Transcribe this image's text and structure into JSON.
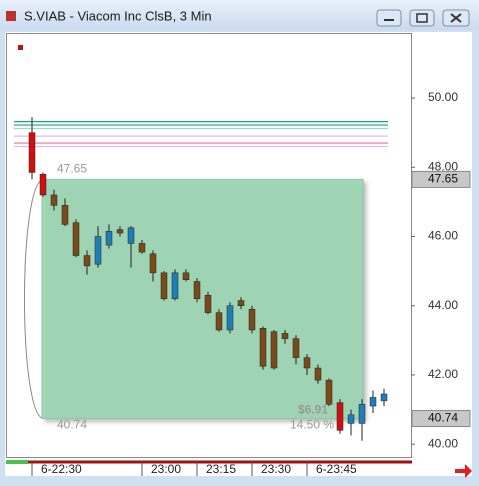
{
  "chart_data": {
    "type": "candlestick",
    "title": "S.VIAB - Viacom Inc ClsB, 3 Min",
    "categories": [
      "6-22:30",
      null,
      null,
      null,
      null,
      null,
      null,
      null,
      null,
      null,
      "23:00",
      null,
      null,
      null,
      null,
      "23:15",
      null,
      null,
      null,
      null,
      "23:30",
      null,
      null,
      null,
      null,
      "6-23:45",
      null,
      null,
      null,
      null,
      null,
      null,
      null
    ],
    "open": [
      49.0,
      47.8,
      47.2,
      46.9,
      46.4,
      45.45,
      45.2,
      45.75,
      46.2,
      45.8,
      45.8,
      45.5,
      44.95,
      44.2,
      44.95,
      44.7,
      44.3,
      43.8,
      43.3,
      44.15,
      43.9,
      43.35,
      43.25,
      43.2,
      43.05,
      42.5,
      42.2,
      41.85,
      41.2,
      40.6,
      40.6,
      41.1,
      41.25
    ],
    "high": [
      49.45,
      47.85,
      47.35,
      47.1,
      46.5,
      45.6,
      46.3,
      46.35,
      46.3,
      46.3,
      45.9,
      45.6,
      45.0,
      45.05,
      45.05,
      44.8,
      44.4,
      43.9,
      44.1,
      44.25,
      44.0,
      43.4,
      43.3,
      43.3,
      43.15,
      42.6,
      42.3,
      41.9,
      41.3,
      41.0,
      41.3,
      41.55,
      41.6
    ],
    "low": [
      47.65,
      47.15,
      46.75,
      46.3,
      45.4,
      44.9,
      45.1,
      45.65,
      46.0,
      45.1,
      45.5,
      44.7,
      44.15,
      44.15,
      44.7,
      44.1,
      43.75,
      43.25,
      43.2,
      43.9,
      43.2,
      42.15,
      42.15,
      42.9,
      42.3,
      42.0,
      41.75,
      41.1,
      40.3,
      40.25,
      40.1,
      40.9,
      41.1
    ],
    "close": [
      47.85,
      47.2,
      46.9,
      46.35,
      45.45,
      45.15,
      46.0,
      46.15,
      46.1,
      46.25,
      45.55,
      44.95,
      44.2,
      44.95,
      44.75,
      44.2,
      43.8,
      43.3,
      44.0,
      44.0,
      43.3,
      42.25,
      42.2,
      43.05,
      42.5,
      42.2,
      41.85,
      41.15,
      40.4,
      40.85,
      41.15,
      41.35,
      41.45
    ],
    "colors": [
      "#d01010",
      "#d01010",
      "#7a4a1a",
      "#7a4a1a",
      "#7a4a1a",
      "#7a4a1a",
      "#1d7fb5",
      "#1d7fb5",
      "#7a4a1a",
      "#1d7fb5",
      "#7a4a1a",
      "#7a4a1a",
      "#7a4a1a",
      "#1d7fb5",
      "#7a4a1a",
      "#7a4a1a",
      "#7a4a1a",
      "#7a4a1a",
      "#1d7fb5",
      "#7a4a1a",
      "#7a4a1a",
      "#7a4a1a",
      "#7a4a1a",
      "#7a4a1a",
      "#7a4a1a",
      "#7a4a1a",
      "#7a4a1a",
      "#7a4a1a",
      "#d01010",
      "#1d7fb5",
      "#1d7fb5",
      "#1d7fb5",
      "#1d7fb5"
    ],
    "levels": [
      {
        "value": 49.32,
        "color": "#1aa37a"
      },
      {
        "value": 49.22,
        "color": "#1aa37a"
      },
      {
        "value": 49.12,
        "color": "#9fd8c4"
      },
      {
        "value": 48.9,
        "color": "#f0b8d8"
      },
      {
        "value": 48.7,
        "color": "#e070b0"
      },
      {
        "value": 48.6,
        "color": "#f0b8d8"
      }
    ],
    "ylim": [
      39.6,
      51.88
    ],
    "yticks": [
      {
        "value": 40,
        "label": "40.00"
      },
      {
        "value": 42,
        "label": "42.00"
      },
      {
        "value": 44,
        "label": "44.00"
      },
      {
        "value": 46,
        "label": "46.00"
      },
      {
        "value": 48,
        "label": "48.00"
      },
      {
        "value": 50,
        "label": "50.00"
      }
    ],
    "measure": {
      "start": 47.65,
      "end": 40.74,
      "change_label": "$6.91",
      "percent_label": "14.50 %"
    }
  }
}
